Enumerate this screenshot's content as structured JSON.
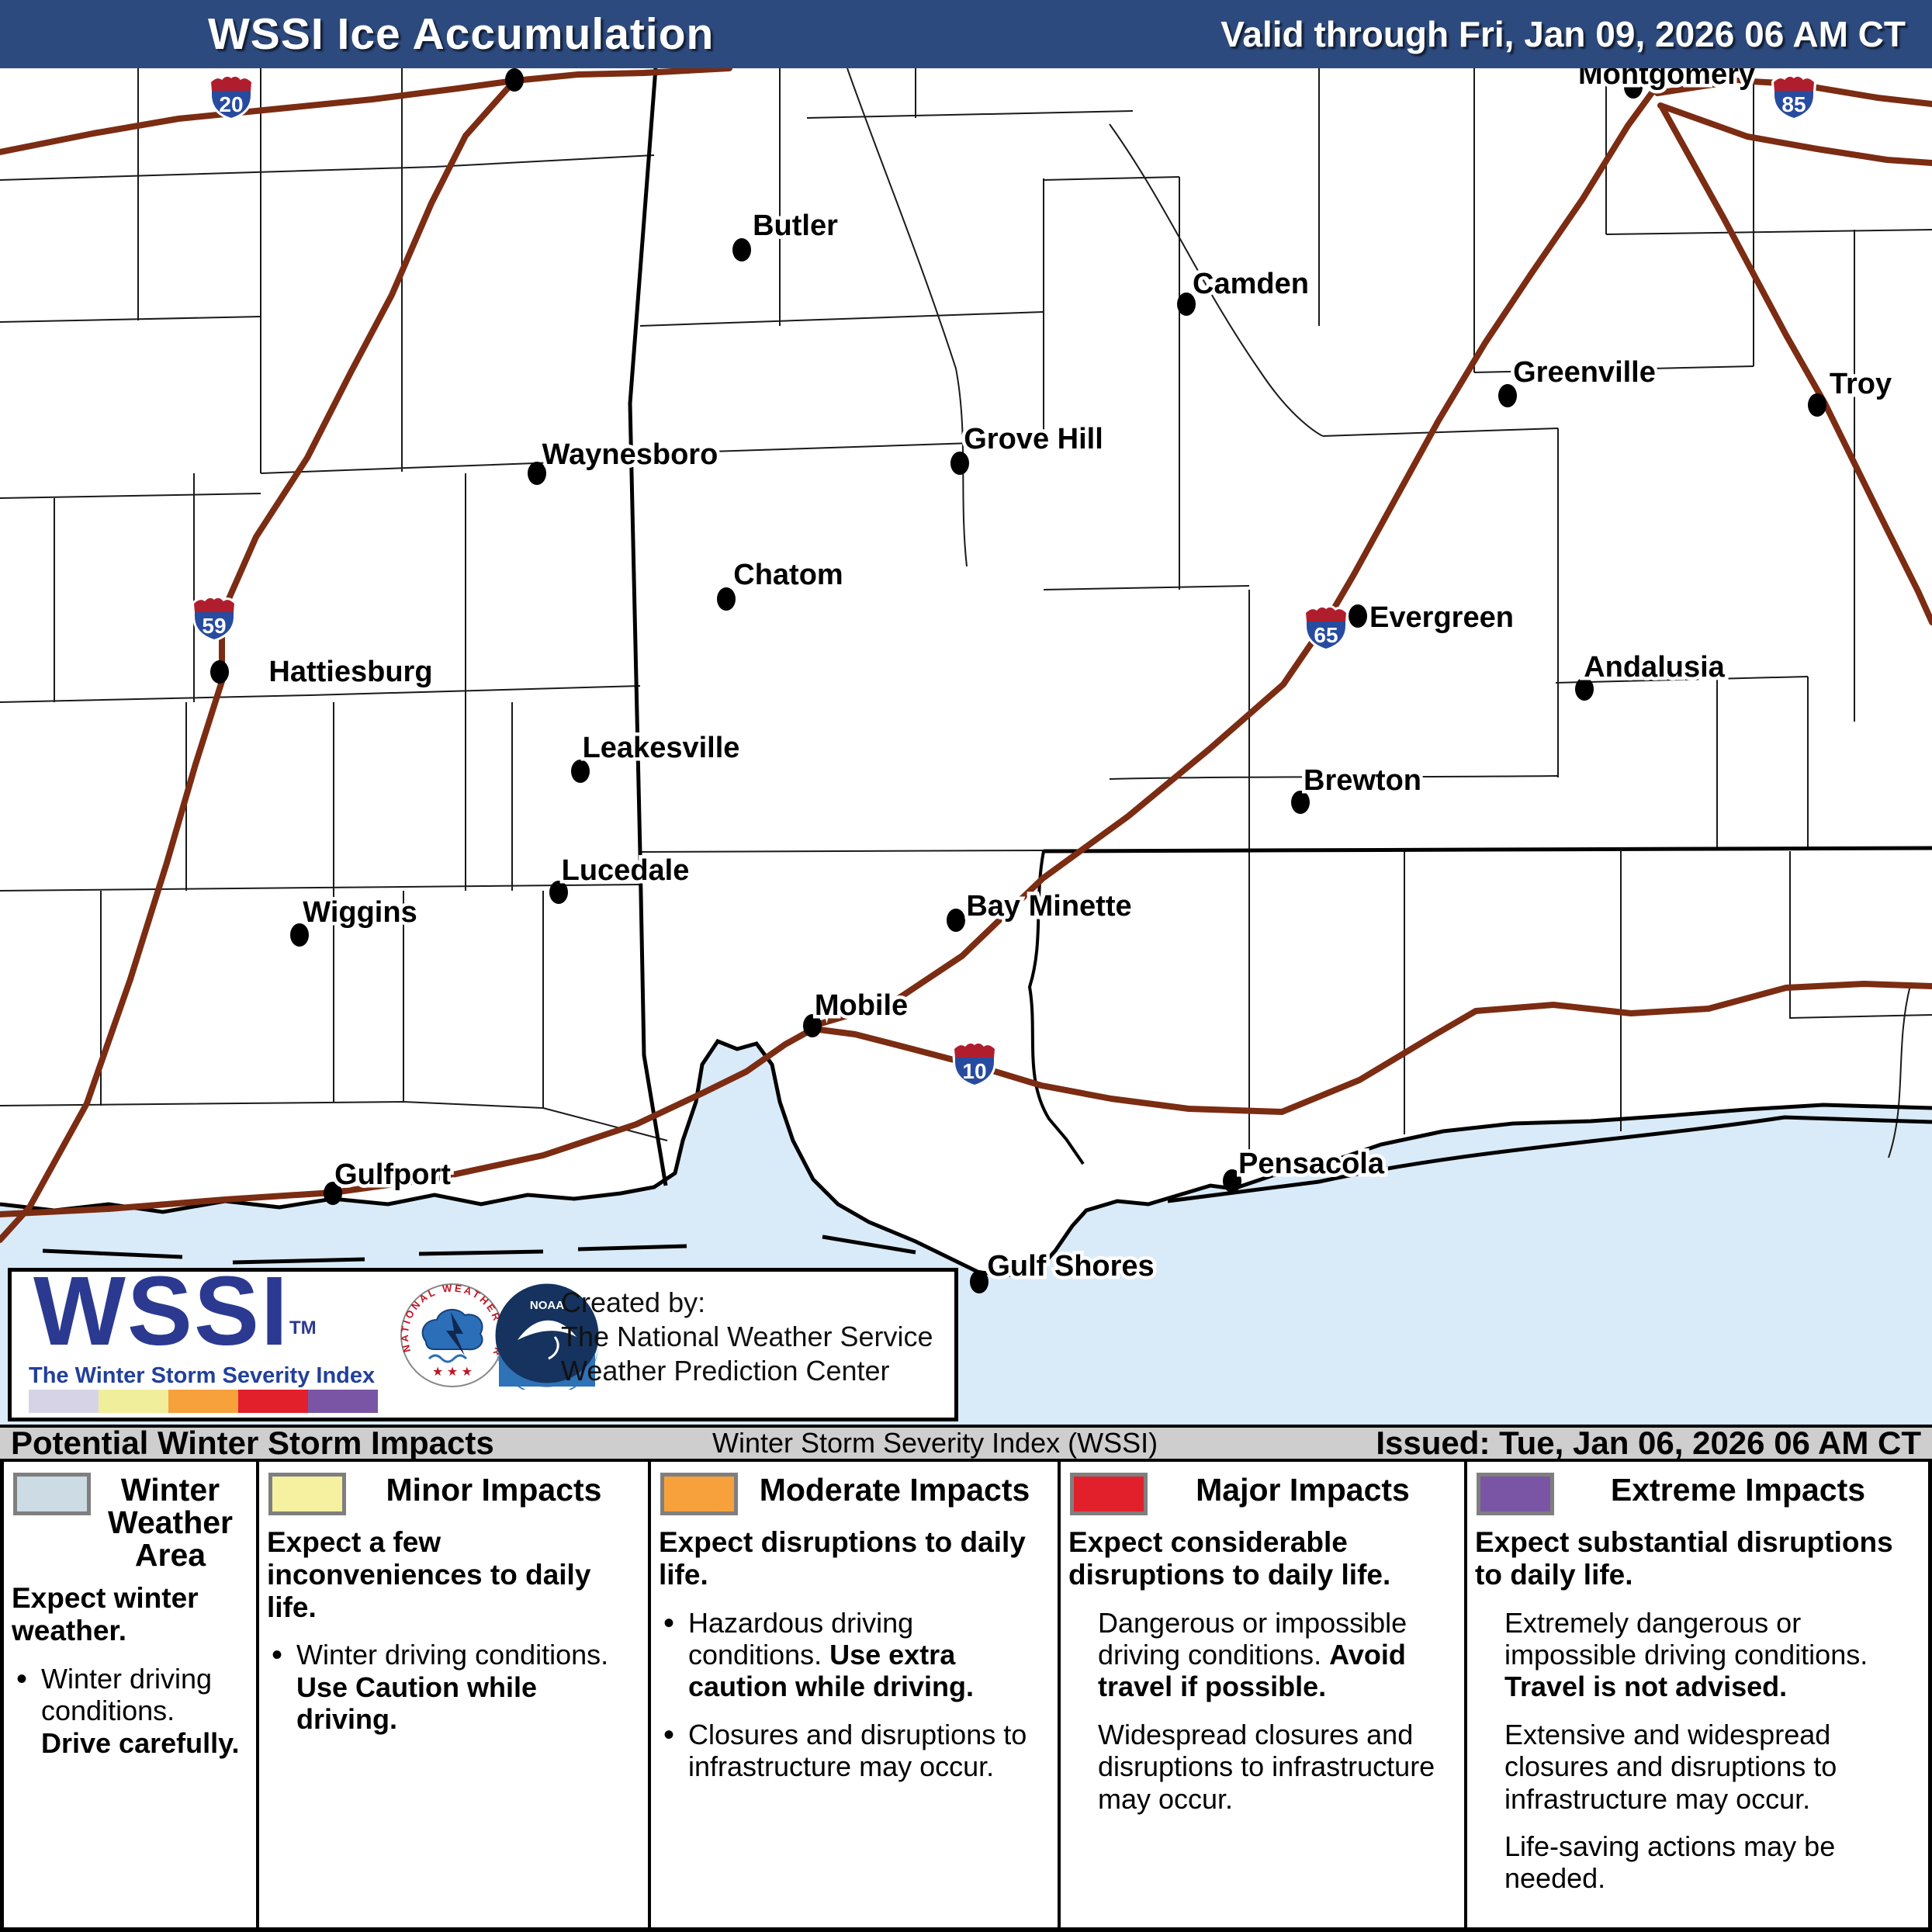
{
  "header": {
    "title": "WSSI Ice Accumulation",
    "valid": "Valid through Fri, Jan 09, 2026 06 AM CT"
  },
  "info_bar": {
    "left": "Potential Winter Storm Impacts",
    "center": "Winter Storm Severity Index (WSSI)",
    "right": "Issued: Tue, Jan 06, 2026 06 AM CT"
  },
  "logo_box": {
    "wssi": "WSSI",
    "tm": "TM",
    "tagline": "The Winter Storm Severity Index",
    "created_by": "Created by:",
    "created_line2": "The National Weather Service",
    "created_line3": "Weather Prediction Center",
    "nws_ring_text": "NATIONAL WEATHER SERVICE",
    "noaa": "NOAA",
    "strip_colors": [
      "#d7d3e6",
      "#f0ee9b",
      "#f6a13c",
      "#e2202b",
      "#7b55a5"
    ]
  },
  "map": {
    "colors": {
      "water": "#d9eaf8",
      "road": "#7b2c12",
      "land": "#ffffff"
    },
    "shields": [
      {
        "number": "20"
      },
      {
        "number": "59"
      },
      {
        "number": "65"
      },
      {
        "number": "85"
      },
      {
        "number": "10"
      }
    ],
    "cities": [
      {
        "name": "Montgomery"
      },
      {
        "name": "Butler"
      },
      {
        "name": "Camden"
      },
      {
        "name": "Greenville"
      },
      {
        "name": "Troy"
      },
      {
        "name": "Waynesboro"
      },
      {
        "name": "Grove Hill"
      },
      {
        "name": "Chatom"
      },
      {
        "name": "Evergreen"
      },
      {
        "name": "Andalusia"
      },
      {
        "name": "Hattiesburg"
      },
      {
        "name": "Leakesville"
      },
      {
        "name": "Brewton"
      },
      {
        "name": "Lucedale"
      },
      {
        "name": "Wiggins"
      },
      {
        "name": "Bay Minette"
      },
      {
        "name": "Mobile"
      },
      {
        "name": "Gulfport"
      },
      {
        "name": "Pensacola"
      },
      {
        "name": "Gulf Shores"
      }
    ]
  },
  "legend": {
    "columns": [
      {
        "title": "Winter Weather Area",
        "color": "#ccdbe4",
        "intro": [
          {
            "t": "Expect winter weather.",
            "b": true
          }
        ],
        "items": [
          {
            "bullet": true,
            "segs": [
              {
                "t": "Winter driving conditions. ",
                "b": false
              },
              {
                "t": "Drive carefully.",
                "b": true
              }
            ]
          }
        ]
      },
      {
        "title": "Minor Impacts",
        "color": "#f5f1a0",
        "intro": [
          {
            "t": "Expect a few inconveniences to daily life.",
            "b": true
          }
        ],
        "items": [
          {
            "bullet": true,
            "segs": [
              {
                "t": "Winter driving conditions. ",
                "b": false
              },
              {
                "t": "Use Caution while driving.",
                "b": true
              }
            ]
          }
        ]
      },
      {
        "title": "Moderate Impacts",
        "color": "#f6a13c",
        "intro": [
          {
            "t": "Expect disruptions to daily life.",
            "b": true
          }
        ],
        "items": [
          {
            "bullet": true,
            "segs": [
              {
                "t": "Hazardous driving conditions. ",
                "b": false
              },
              {
                "t": "Use extra caution while driving.",
                "b": true
              }
            ]
          },
          {
            "bullet": true,
            "segs": [
              {
                "t": "Closures and disruptions to infrastructure may occur.",
                "b": false
              }
            ]
          }
        ]
      },
      {
        "title": "Major Impacts",
        "color": "#e2202b",
        "intro": [
          {
            "t": "Expect considerable disruptions to daily life.",
            "b": true
          }
        ],
        "items": [
          {
            "bullet": false,
            "segs": [
              {
                "t": "Dangerous or impossible driving conditions. ",
                "b": false
              },
              {
                "t": "Avoid travel if possible.",
                "b": true
              }
            ]
          },
          {
            "bullet": false,
            "segs": [
              {
                "t": "Widespread closures and disruptions to infrastructure may occur.",
                "b": false
              }
            ]
          }
        ]
      },
      {
        "title": "Extreme Impacts",
        "color": "#7b55a5",
        "intro": [
          {
            "t": "Expect substantial disruptions to daily life.",
            "b": true
          }
        ],
        "items": [
          {
            "bullet": false,
            "segs": [
              {
                "t": "Extremely dangerous or impossible driving conditions. ",
                "b": false
              },
              {
                "t": "Travel is not advised.",
                "b": true
              }
            ]
          },
          {
            "bullet": false,
            "segs": [
              {
                "t": "Extensive and widespread closures and disruptions to infrastructure may occur.",
                "b": false
              }
            ]
          },
          {
            "bullet": false,
            "segs": [
              {
                "t": "Life-saving actions may be needed.",
                "b": false
              }
            ]
          }
        ]
      }
    ]
  }
}
